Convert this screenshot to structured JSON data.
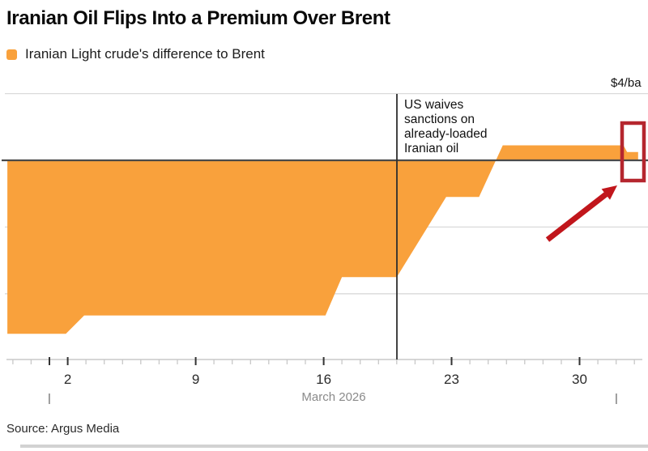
{
  "header": {
    "title": "Iranian Oil Flips Into a Premium Over Brent",
    "legend_label": "Iranian Light crude's difference to Brent"
  },
  "chart": {
    "unit_label": "$4/ba",
    "annotation_lines": [
      "US waives",
      "sanctions on",
      "already-loaded",
      "Iranian oil"
    ],
    "annotation_event_day_of_march": 20,
    "x_axis": {
      "tick_labels": [
        "2",
        "9",
        "16",
        "23",
        "30"
      ],
      "tick_label_days": [
        2,
        9,
        16,
        23,
        30
      ],
      "major_tick_days": [
        1,
        2,
        9,
        16,
        23,
        30
      ],
      "minor_tick_day_start": -1,
      "minor_tick_day_end": 33,
      "month_label": "March 2026",
      "boundary_marker": "|",
      "boundary_days": [
        1,
        32
      ]
    },
    "y_axis": {
      "gridline_values": [
        4,
        -4,
        -8
      ],
      "zero_value": 0,
      "top_tick_value": 4
    }
  },
  "chart_data": {
    "type": "area",
    "title": "Iranian Oil Flips Into a Premium Over Brent",
    "series_name": "Iranian Light crude's difference to Brent",
    "xlabel": "March 2026",
    "ylabel": "$4/ba",
    "ylim": [
      -12,
      4
    ],
    "gridlines_dollars": [
      4,
      0,
      -4,
      -8
    ],
    "x_ticks_day_of_march": [
      2,
      9,
      16,
      23,
      30
    ],
    "x_day_of_march": [
      -1.3,
      1.9,
      2.9,
      16.1,
      17.0,
      20.0,
      22.7,
      24.5,
      25.8,
      32.4,
      32.6,
      33.2
    ],
    "y_dollars_per_barrel": [
      -10.4,
      -10.4,
      -9.3,
      -9.3,
      -7.0,
      -7.0,
      -2.2,
      -2.2,
      0.9,
      0.9,
      0.5,
      0.5
    ],
    "annotation": "US waives sanctions on already-loaded Iranian oil",
    "annotation_x_day_of_march": 20,
    "legend_position": "top-left",
    "grid": true
  },
  "footer": {
    "source": "Source: Argus Media"
  },
  "colors": {
    "series_orange": "#F9A13C",
    "highlight_rect_red": "#B5262E",
    "arrow_red": "#C1161C",
    "gridline_gray": "#DADADA",
    "zero_line_gray": "#4A4A4A",
    "axis_gray": "#C8C8C8",
    "major_tick_dark": "#333333",
    "month_label_gray": "#8A8A8A"
  }
}
